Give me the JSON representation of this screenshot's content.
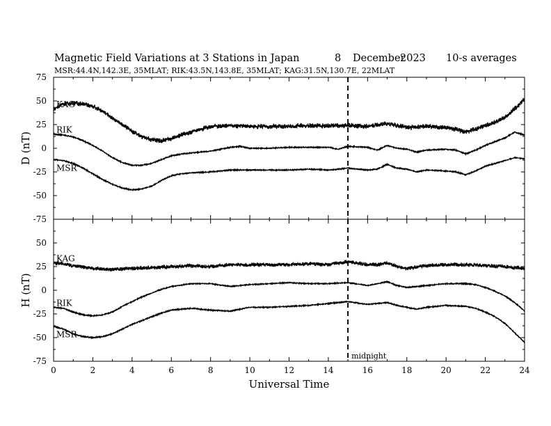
{
  "header": {
    "title": "Magnetic Field Variations at 3 Stations in Japan",
    "day": "8",
    "month": "December",
    "year": "2023",
    "averaging": "10-s averages",
    "stations_line": "MSR:44.4N,142.3E, 35MLAT;  RIK:43.5N,143.8E, 35MLAT;  KAG:31.5N,130.7E, 22MLAT"
  },
  "annotations": {
    "midnight": "midnight"
  },
  "chart_data": [
    {
      "type": "line",
      "ylabel": "D (nT)",
      "ylim": [
        -75,
        75
      ],
      "yticks": [
        75,
        50,
        25,
        0,
        -25,
        -50,
        -75
      ],
      "xlim": [
        0,
        24
      ],
      "xticks": [
        0,
        2,
        4,
        6,
        8,
        10,
        12,
        14,
        16,
        18,
        20,
        22,
        24
      ],
      "midnight_ut": 15,
      "series": [
        {
          "name": "KAG",
          "noise": 2.5,
          "points": [
            [
              0,
              42
            ],
            [
              0.5,
              47
            ],
            [
              1,
              48
            ],
            [
              1.5,
              47
            ],
            [
              2,
              44
            ],
            [
              2.5,
              39
            ],
            [
              3,
              32
            ],
            [
              3.5,
              25
            ],
            [
              4,
              18
            ],
            [
              4.5,
              12
            ],
            [
              5,
              9
            ],
            [
              5.5,
              8
            ],
            [
              6,
              10
            ],
            [
              6.5,
              14
            ],
            [
              7,
              17
            ],
            [
              7.5,
              20
            ],
            [
              8,
              23
            ],
            [
              9,
              24
            ],
            [
              10,
              23
            ],
            [
              11,
              23
            ],
            [
              12,
              23
            ],
            [
              13,
              24
            ],
            [
              14,
              24
            ],
            [
              15,
              24
            ],
            [
              16,
              23
            ],
            [
              16.5,
              25
            ],
            [
              17,
              26
            ],
            [
              17.5,
              24
            ],
            [
              18,
              22
            ],
            [
              19,
              23
            ],
            [
              20,
              22
            ],
            [
              20.5,
              20
            ],
            [
              21,
              17
            ],
            [
              21.5,
              20
            ],
            [
              22,
              24
            ],
            [
              22.5,
              27
            ],
            [
              23,
              33
            ],
            [
              23.5,
              42
            ],
            [
              24,
              52
            ]
          ]
        },
        {
          "name": "RIK",
          "noise": 0.6,
          "points": [
            [
              0,
              15
            ],
            [
              0.5,
              14
            ],
            [
              1,
              12
            ],
            [
              1.5,
              8
            ],
            [
              2,
              3
            ],
            [
              2.5,
              -3
            ],
            [
              3,
              -10
            ],
            [
              3.5,
              -15
            ],
            [
              4,
              -18
            ],
            [
              4.5,
              -18
            ],
            [
              5,
              -16
            ],
            [
              5.5,
              -12
            ],
            [
              6,
              -8
            ],
            [
              6.5,
              -6
            ],
            [
              7,
              -5
            ],
            [
              8,
              -3
            ],
            [
              9,
              1
            ],
            [
              9.5,
              2
            ],
            [
              10,
              0
            ],
            [
              11,
              0
            ],
            [
              12,
              1
            ],
            [
              13,
              1
            ],
            [
              14,
              1
            ],
            [
              14.5,
              -1
            ],
            [
              15,
              2
            ],
            [
              16,
              1
            ],
            [
              16.5,
              -2
            ],
            [
              17,
              3
            ],
            [
              17.5,
              0
            ],
            [
              18,
              -1
            ],
            [
              18.5,
              -4
            ],
            [
              19,
              -2
            ],
            [
              20,
              -1
            ],
            [
              20.5,
              -2
            ],
            [
              21,
              -6
            ],
            [
              21.5,
              -2
            ],
            [
              22,
              3
            ],
            [
              23,
              11
            ],
            [
              23.5,
              17
            ],
            [
              24,
              14
            ]
          ]
        },
        {
          "name": "MSR",
          "noise": 0.6,
          "points": [
            [
              0,
              -12
            ],
            [
              0.5,
              -13
            ],
            [
              1,
              -16
            ],
            [
              1.5,
              -21
            ],
            [
              2,
              -27
            ],
            [
              2.5,
              -33
            ],
            [
              3,
              -38
            ],
            [
              3.5,
              -42
            ],
            [
              4,
              -44
            ],
            [
              4.5,
              -43
            ],
            [
              5,
              -40
            ],
            [
              5.5,
              -34
            ],
            [
              6,
              -29
            ],
            [
              6.5,
              -27
            ],
            [
              7,
              -26
            ],
            [
              8,
              -25
            ],
            [
              9,
              -23
            ],
            [
              10,
              -23
            ],
            [
              11,
              -23
            ],
            [
              12,
              -23
            ],
            [
              13,
              -22
            ],
            [
              14,
              -23
            ],
            [
              15,
              -21
            ],
            [
              16,
              -23
            ],
            [
              16.5,
              -22
            ],
            [
              17,
              -17
            ],
            [
              17.5,
              -21
            ],
            [
              18,
              -22
            ],
            [
              18.5,
              -25
            ],
            [
              19,
              -23
            ],
            [
              20,
              -24
            ],
            [
              20.5,
              -25
            ],
            [
              21,
              -28
            ],
            [
              21.5,
              -24
            ],
            [
              22,
              -19
            ],
            [
              23,
              -13
            ],
            [
              23.5,
              -10
            ],
            [
              24,
              -11
            ]
          ]
        }
      ]
    },
    {
      "type": "line",
      "ylabel": "H (nT)",
      "ylim": [
        -75,
        75
      ],
      "yticks": [
        75,
        50,
        25,
        0,
        -25,
        -50,
        -75
      ],
      "xlim": [
        0,
        24
      ],
      "xticks": [
        0,
        2,
        4,
        6,
        8,
        10,
        12,
        14,
        16,
        18,
        20,
        22,
        24
      ],
      "xlabel": "Universal Time",
      "midnight_ut": 15,
      "series": [
        {
          "name": "KAG",
          "noise": 2.0,
          "points": [
            [
              0,
              29
            ],
            [
              0.5,
              28
            ],
            [
              1,
              26
            ],
            [
              2,
              23
            ],
            [
              3,
              22
            ],
            [
              4,
              23
            ],
            [
              5,
              24
            ],
            [
              6,
              25
            ],
            [
              7,
              26
            ],
            [
              8,
              25
            ],
            [
              9,
              27
            ],
            [
              10,
              27
            ],
            [
              11,
              27
            ],
            [
              12,
              27
            ],
            [
              13,
              28
            ],
            [
              14,
              27
            ],
            [
              15,
              30
            ],
            [
              16,
              27
            ],
            [
              16.5,
              27
            ],
            [
              17,
              29
            ],
            [
              17.5,
              25
            ],
            [
              18,
              23
            ],
            [
              19,
              26
            ],
            [
              20,
              27
            ],
            [
              21,
              27
            ],
            [
              22,
              26
            ],
            [
              23,
              25
            ],
            [
              24,
              23
            ]
          ]
        },
        {
          "name": "RIK",
          "noise": 0.6,
          "points": [
            [
              0,
              -18
            ],
            [
              0.5,
              -19
            ],
            [
              1,
              -23
            ],
            [
              1.5,
              -26
            ],
            [
              2,
              -27
            ],
            [
              2.5,
              -26
            ],
            [
              3,
              -23
            ],
            [
              3.5,
              -17
            ],
            [
              4,
              -12
            ],
            [
              4.5,
              -7
            ],
            [
              5,
              -3
            ],
            [
              5.5,
              1
            ],
            [
              6,
              4
            ],
            [
              7,
              7
            ],
            [
              8,
              7
            ],
            [
              9,
              4
            ],
            [
              10,
              6
            ],
            [
              11,
              7
            ],
            [
              12,
              8
            ],
            [
              13,
              7
            ],
            [
              14,
              7
            ],
            [
              15,
              8
            ],
            [
              16,
              5
            ],
            [
              17,
              9
            ],
            [
              17.5,
              5
            ],
            [
              18,
              3
            ],
            [
              18.5,
              4
            ],
            [
              19,
              5
            ],
            [
              20,
              7
            ],
            [
              21,
              7
            ],
            [
              21.5,
              6
            ],
            [
              22,
              3
            ],
            [
              22.5,
              -1
            ],
            [
              23,
              -6
            ],
            [
              23.5,
              -13
            ],
            [
              24,
              -22
            ]
          ]
        },
        {
          "name": "MSR",
          "noise": 0.6,
          "points": [
            [
              0,
              -38
            ],
            [
              0.5,
              -41
            ],
            [
              1,
              -46
            ],
            [
              1.5,
              -49
            ],
            [
              2,
              -50
            ],
            [
              2.5,
              -49
            ],
            [
              3,
              -46
            ],
            [
              3.5,
              -41
            ],
            [
              4,
              -36
            ],
            [
              4.5,
              -32
            ],
            [
              5,
              -28
            ],
            [
              5.5,
              -24
            ],
            [
              6,
              -21
            ],
            [
              7,
              -19
            ],
            [
              8,
              -21
            ],
            [
              9,
              -22
            ],
            [
              10,
              -18
            ],
            [
              11,
              -18
            ],
            [
              12,
              -17
            ],
            [
              13,
              -16
            ],
            [
              14,
              -14
            ],
            [
              15,
              -12
            ],
            [
              16,
              -15
            ],
            [
              17,
              -13
            ],
            [
              17.5,
              -16
            ],
            [
              18,
              -18
            ],
            [
              18.5,
              -20
            ],
            [
              19,
              -18
            ],
            [
              20,
              -16
            ],
            [
              21,
              -17
            ],
            [
              21.5,
              -19
            ],
            [
              22,
              -23
            ],
            [
              22.5,
              -28
            ],
            [
              23,
              -35
            ],
            [
              23.5,
              -45
            ],
            [
              24,
              -55
            ]
          ]
        }
      ]
    }
  ]
}
